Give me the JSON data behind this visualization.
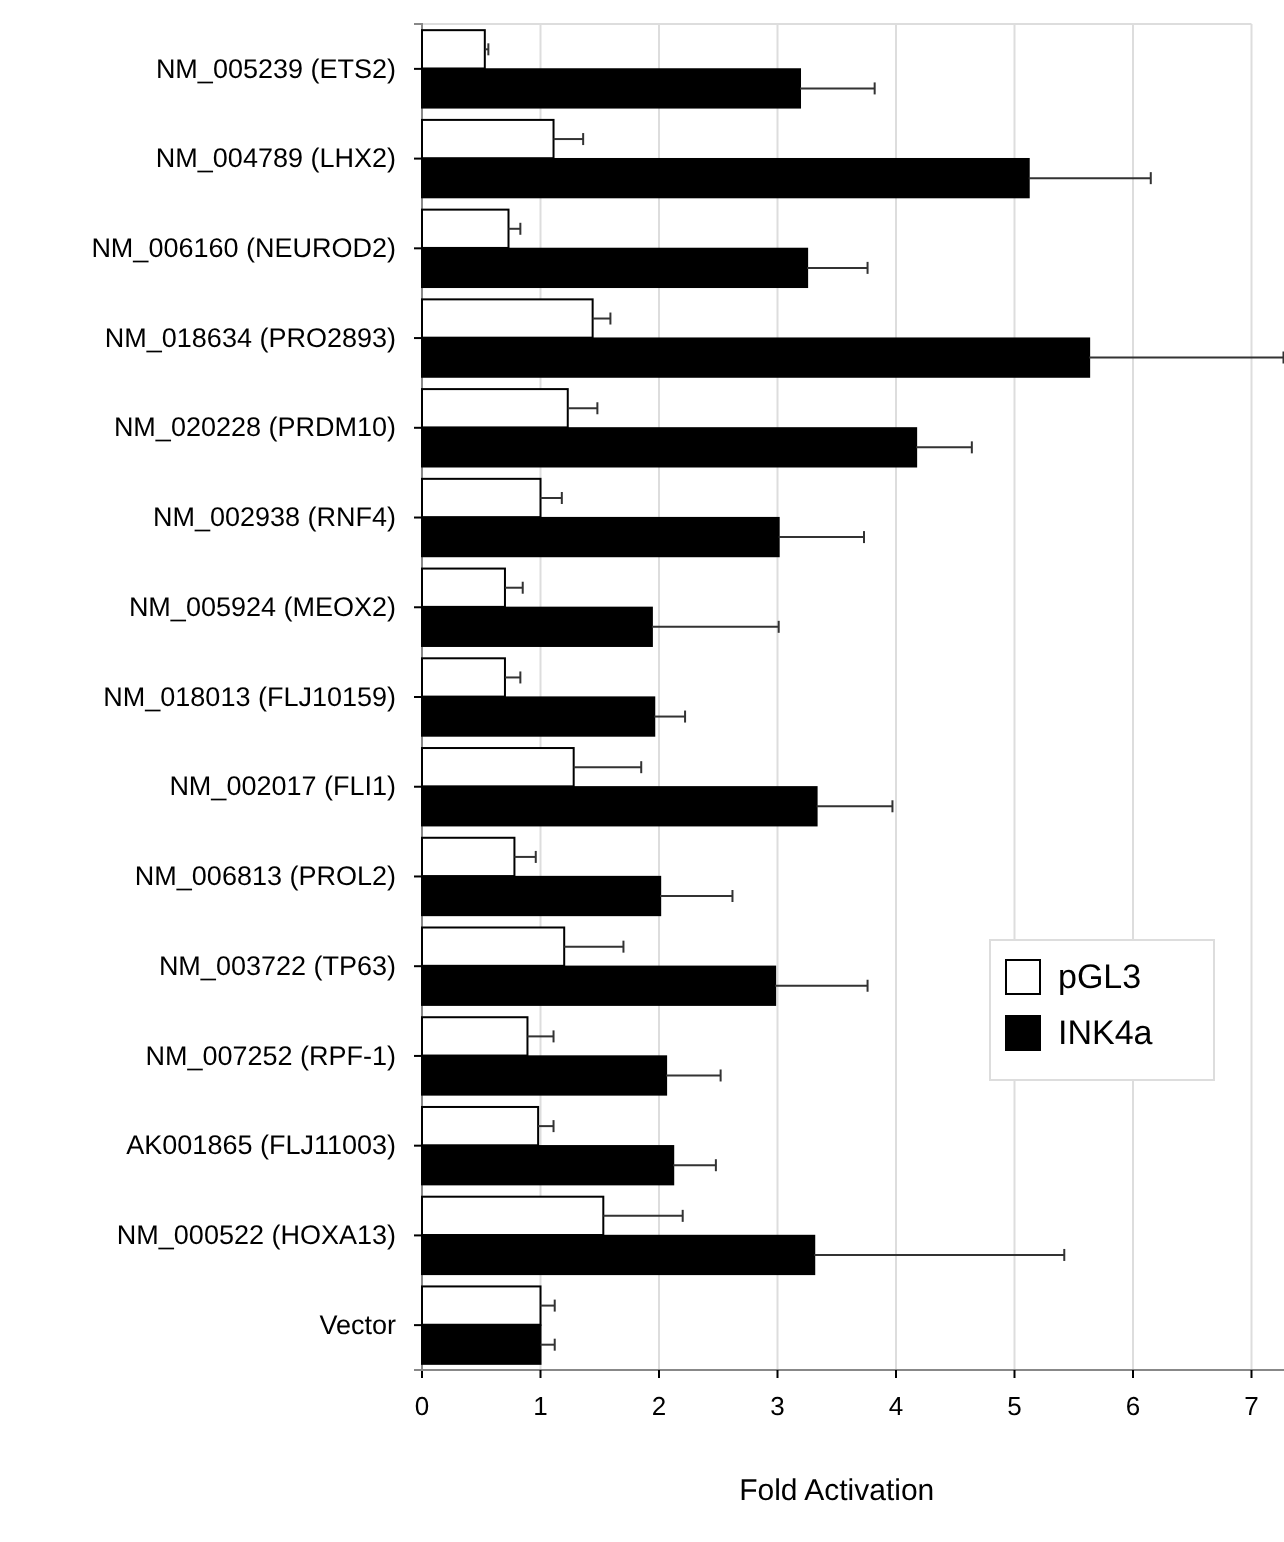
{
  "chart_data": {
    "type": "bar",
    "orientation": "horizontal",
    "xlabel": "Fold Activation",
    "categories": [
      "NM_005239 (ETS2)",
      "NM_004789 (LHX2)",
      "NM_006160 (NEUROD2)",
      "NM_018634 (PRO2893)",
      "NM_020228  (PRDM10)",
      "NM_002938 (RNF4)",
      "NM_005924 (MEOX2)",
      "NM_018013 (FLJ10159)",
      "NM_002017 (FLI1)",
      "NM_006813 (PROL2)",
      "NM_003722 (TP63)",
      "NM_007252 (RPF-1)",
      "AK001865 (FLJ11003)",
      "NM_000522 (HOXA13)",
      "Vector"
    ],
    "series": [
      {
        "name": "pGL3",
        "color": "#ffffff",
        "values": [
          0.53,
          1.11,
          0.73,
          1.44,
          1.23,
          1.0,
          0.7,
          0.7,
          1.28,
          0.78,
          1.2,
          0.89,
          0.98,
          1.53,
          1.0
        ],
        "errors": [
          0.03,
          0.25,
          0.1,
          0.15,
          0.25,
          0.18,
          0.15,
          0.13,
          0.57,
          0.18,
          0.5,
          0.22,
          0.13,
          0.67,
          0.12
        ]
      },
      {
        "name": "INK4a",
        "color": "#000000",
        "values": [
          3.19,
          5.12,
          3.25,
          5.63,
          4.17,
          3.01,
          1.94,
          1.96,
          3.33,
          2.01,
          2.98,
          2.06,
          2.12,
          3.31,
          1.0
        ],
        "errors": [
          0.63,
          1.03,
          0.51,
          1.64,
          0.47,
          0.72,
          1.07,
          0.26,
          0.64,
          0.61,
          0.78,
          0.46,
          0.36,
          2.11,
          0.12
        ]
      }
    ],
    "xlim": [
      0,
      7.3
    ],
    "xticks": [
      0,
      1,
      2,
      3,
      4,
      5,
      6,
      7
    ],
    "grid": "x",
    "legend": "right"
  }
}
